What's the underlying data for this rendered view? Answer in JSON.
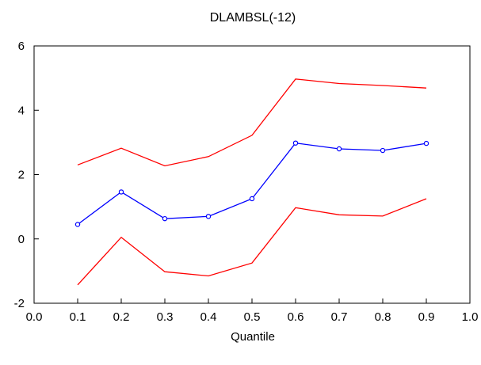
{
  "chart_data": {
    "type": "line",
    "title": "DLAMBSL(-12)",
    "xlabel": "Quantile",
    "ylabel": "",
    "xlim": [
      0.0,
      1.0
    ],
    "ylim": [
      -2,
      6
    ],
    "x_ticks": [
      "0.0",
      "0.1",
      "0.2",
      "0.3",
      "0.4",
      "0.5",
      "0.6",
      "0.7",
      "0.8",
      "0.9",
      "1.0"
    ],
    "y_ticks": [
      "-2",
      "0",
      "2",
      "4",
      "6"
    ],
    "grid": false,
    "legend": "none",
    "x": [
      0.1,
      0.2,
      0.3,
      0.4,
      0.5,
      0.6,
      0.7,
      0.8,
      0.9
    ],
    "series": [
      {
        "role": "upper-band",
        "color": "#ff0000",
        "markers": false,
        "values": [
          2.3,
          2.82,
          2.27,
          2.56,
          3.22,
          4.97,
          4.83,
          4.77,
          4.69
        ]
      },
      {
        "role": "estimate",
        "color": "#0000ff",
        "markers": true,
        "values": [
          0.45,
          1.46,
          0.63,
          0.7,
          1.25,
          2.98,
          2.8,
          2.75,
          2.97
        ]
      },
      {
        "role": "lower-band",
        "color": "#ff0000",
        "markers": false,
        "values": [
          -1.43,
          0.05,
          -1.02,
          -1.15,
          -0.75,
          0.97,
          0.75,
          0.71,
          1.25
        ]
      }
    ]
  }
}
